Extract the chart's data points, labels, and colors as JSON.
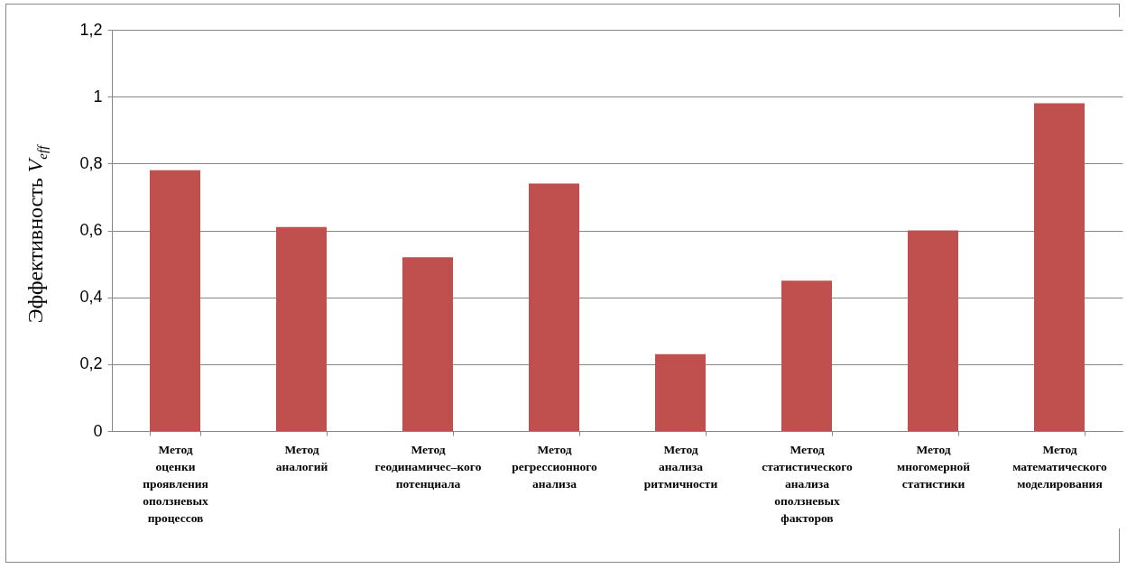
{
  "chart_data": {
    "type": "bar",
    "ylabel": "Эффективность V$_{eff}$",
    "categories": [
      "Метод оценки проявления оползневых процессов",
      "Метод аналогий",
      "Метод геодинамичес–кого потенциала",
      "Метод регрессионного анализа",
      "Метод анализа ритмичности",
      "Метод статистического анализа оползневых факторов",
      "Метод многомерной статистики",
      "Метод математического моделирования"
    ],
    "values": [
      0.78,
      0.61,
      0.52,
      0.74,
      0.23,
      0.45,
      0.6,
      0.98
    ],
    "color": "#c0504d",
    "ylim": [
      0,
      1.2
    ],
    "yticks": [
      {
        "value": 0,
        "label": "0"
      },
      {
        "value": 0.2,
        "label": "0,2"
      },
      {
        "value": 0.4,
        "label": "0,4"
      },
      {
        "value": 0.6,
        "label": "0,6"
      },
      {
        "value": 0.8,
        "label": "0,8"
      },
      {
        "value": 1,
        "label": "1"
      },
      {
        "value": 1.2,
        "label": "1,2"
      }
    ],
    "grid": true
  }
}
